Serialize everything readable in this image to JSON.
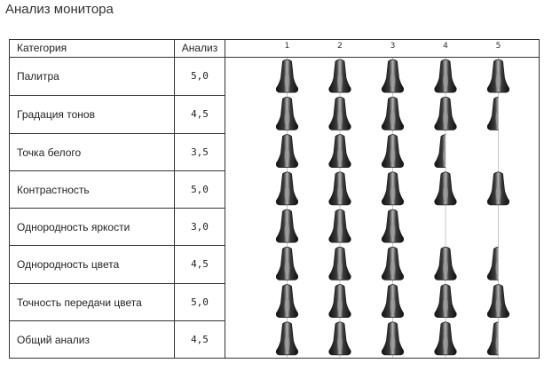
{
  "title": "Анализ монитора",
  "headers": {
    "category": "Категория",
    "score": "Анализ"
  },
  "chart_data": {
    "type": "bar",
    "categories": [
      "Палитра",
      "Градация тонов",
      "Точка белого",
      "Контрастность",
      "Однородность яркости",
      "Однородность цвета",
      "Точность передачи цвета",
      "Общий анализ"
    ],
    "values": [
      5.0,
      4.5,
      3.5,
      5.0,
      3.0,
      4.5,
      5.0,
      4.5
    ],
    "value_labels": [
      "5,0",
      "4,5",
      "3,5",
      "5,0",
      "3,0",
      "4,5",
      "5,0",
      "4,5"
    ],
    "ticks": [
      "1",
      "2",
      "3",
      "4",
      "5"
    ],
    "xlim": [
      0,
      5
    ],
    "grid": true,
    "mark": "bell-icon",
    "colors": {
      "icon_dark": "#1a1a1a",
      "icon_light": "#9a9a9a",
      "grid": "#c8c8c8",
      "border": "#333333"
    }
  }
}
